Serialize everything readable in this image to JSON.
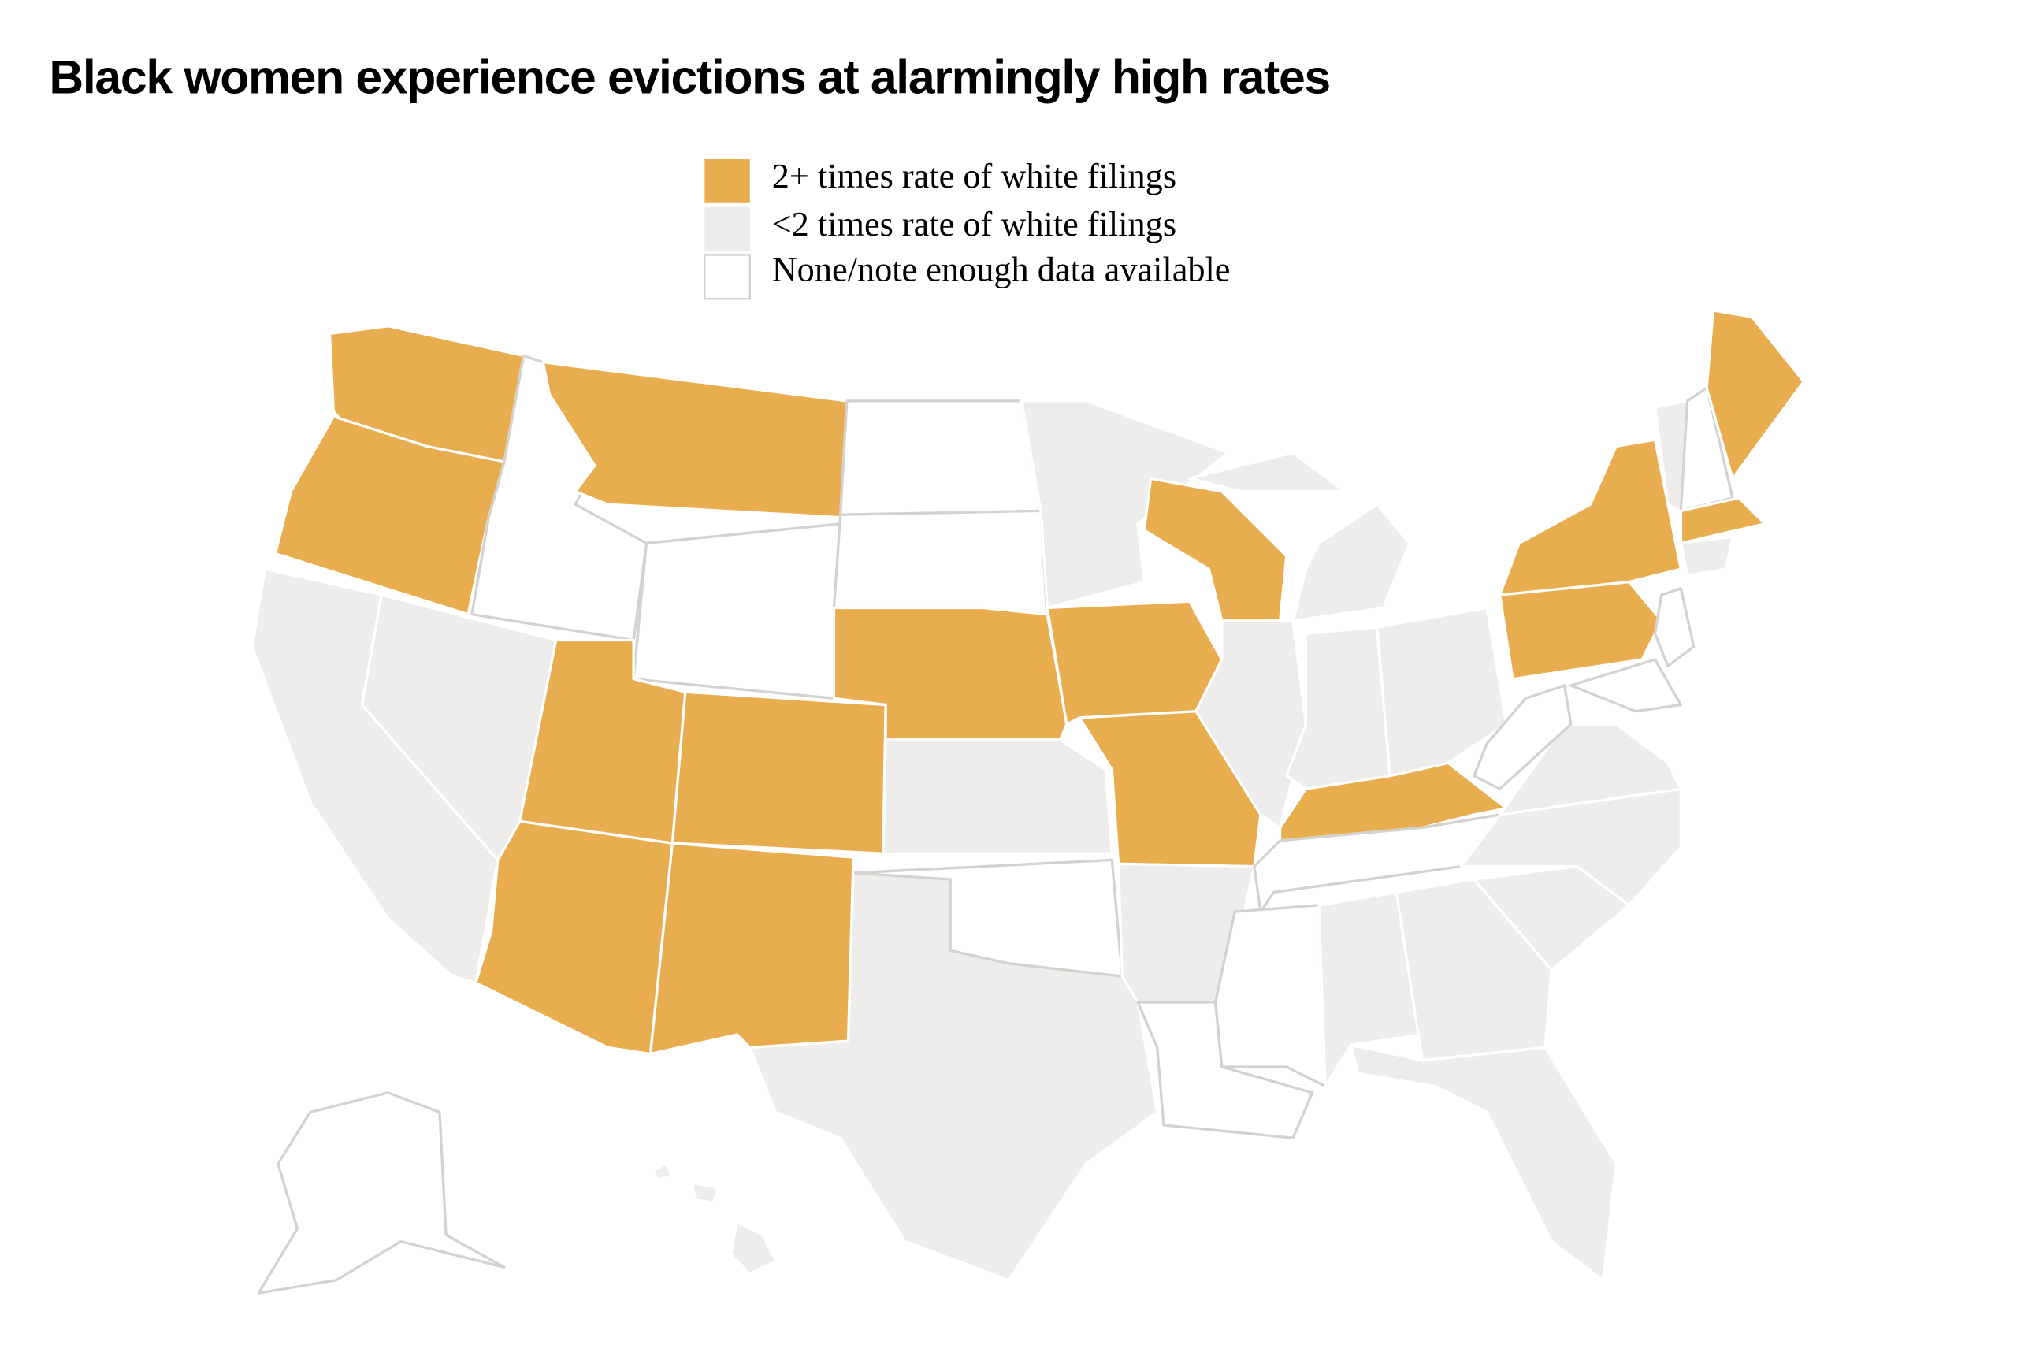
{
  "title": "Black women experience evictions at alarmingly high rates",
  "legend": [
    {
      "label": "2+ times rate of white filings",
      "color": "#e8ad4f"
    },
    {
      "label": "<2 times rate of white filings",
      "color": "#efedeb"
    },
    {
      "label": "None/note enough data available",
      "color": "#ffffff"
    }
  ]
}
